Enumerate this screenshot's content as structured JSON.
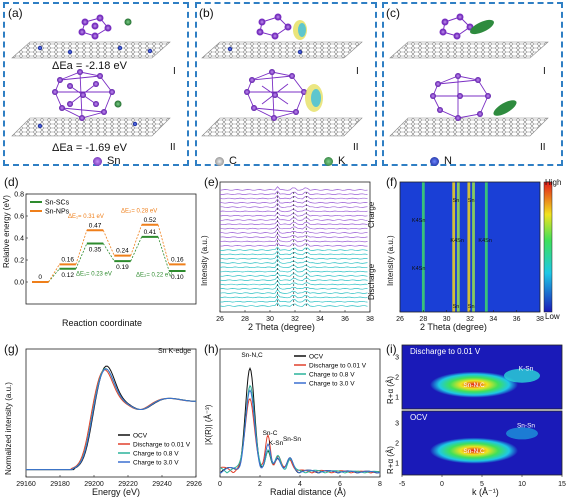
{
  "panel_labels": [
    "(a)",
    "(b)",
    "(c)",
    "(d)",
    "(e)",
    "(f)",
    "(g)",
    "(h)",
    "(i)"
  ],
  "top": {
    "a_energy_1": "ΔEa = -2.18 eV",
    "a_energy_2": "ΔEa = -1.69 eV",
    "roman_1": "I",
    "roman_2": "II",
    "legend": [
      {
        "label": "Sn",
        "color": "#7b2fc4"
      },
      {
        "label": "C",
        "color": "#a8a8a8"
      },
      {
        "label": "K",
        "color": "#2e8b3e"
      },
      {
        "label": "N",
        "color": "#1c2fb8"
      }
    ]
  },
  "chart_data": [
    {
      "id": "d",
      "type": "line",
      "xlabel": "Reaction coordinate",
      "ylabel": "Relative energy (eV)",
      "ylim": [
        -0.2,
        0.8
      ],
      "yticks": [
        "0.0",
        "0.2",
        "0.4",
        "0.6",
        "0.8"
      ],
      "series": [
        {
          "name": "Sn-SCs",
          "color": "#2e8b2e",
          "values": [
            0,
            0.12,
            0.35,
            0.19,
            0.41,
            0.1
          ]
        },
        {
          "name": "Sn-NPs",
          "color": "#ef7f1a",
          "values": [
            0,
            0.16,
            0.47,
            0.24,
            0.52,
            0.16
          ]
        }
      ],
      "level_labels": [
        "0",
        "0.16",
        "0.47",
        "0.24",
        "0.52",
        "0.16",
        "0.12",
        "0.35",
        "0.19",
        "0.41",
        "0.10"
      ],
      "barrier_labels": [
        {
          "text": "ΔE₁= 0.31 eV",
          "color": "#ef7f1a"
        },
        {
          "text": "ΔE₂= 0.28 eV",
          "color": "#ef7f1a"
        },
        {
          "text": "ΔE₁= 0.23 eV",
          "color": "#2e8b2e"
        },
        {
          "text": "ΔE₂= 0.22 eV",
          "color": "#2e8b2e"
        }
      ]
    },
    {
      "id": "e",
      "type": "line",
      "xlabel": "2 Theta (degree)",
      "ylabel": "Intensity (a.u.)",
      "xlim": [
        26,
        38
      ],
      "xticks": [
        "26",
        "28",
        "30",
        "32",
        "34",
        "36",
        "38"
      ],
      "side_labels": [
        "Charge",
        "Discharge"
      ]
    },
    {
      "id": "f",
      "type": "heatmap",
      "xlabel": "2 Theta (degree)",
      "ylabel": "Intensity (a.u.)",
      "xlim": [
        26,
        38
      ],
      "xticks": [
        "26",
        "28",
        "30",
        "32",
        "34",
        "36",
        "38"
      ],
      "colorbar_high": "High",
      "colorbar_low": "Low",
      "annotations": [
        "K4Sn",
        "Sn",
        "Sn",
        "K4Sn",
        "K4Sn",
        "K4Sn",
        "Sn",
        "Sn"
      ]
    },
    {
      "id": "g",
      "type": "line",
      "title": "Sn K-edge",
      "xlabel": "Energy (eV)",
      "ylabel": "Normalized intensity (a.u.)",
      "xlim": [
        29160,
        29260
      ],
      "xticks": [
        "29160",
        "29180",
        "29200",
        "29220",
        "29240",
        "29260"
      ],
      "series": [
        {
          "name": "OCV",
          "color": "#111111"
        },
        {
          "name": "Discharge to 0.01 V",
          "color": "#e0402c"
        },
        {
          "name": "Charge to 0.8 V",
          "color": "#2bb39a"
        },
        {
          "name": "Charge to 3.0 V",
          "color": "#3a6fd0"
        }
      ]
    },
    {
      "id": "h",
      "type": "line",
      "xlabel": "Radial distance (Å)",
      "ylabel": "|X(R)| (Å⁻³)",
      "xlim": [
        0,
        8
      ],
      "xticks": [
        "0",
        "2",
        "4",
        "6",
        "8"
      ],
      "annotations": [
        "Sn-N,C",
        "Sn-C",
        "K-Sn",
        "Sn-Sn"
      ],
      "series": [
        {
          "name": "OCV",
          "color": "#111111"
        },
        {
          "name": "Discharge to 0.01 V",
          "color": "#e0402c"
        },
        {
          "name": "Charge to 0.8 V",
          "color": "#2bb39a"
        },
        {
          "name": "Charge to 3.0 V",
          "color": "#3a6fd0"
        }
      ]
    },
    {
      "id": "i",
      "type": "heatmap",
      "xlabel": "k (Å⁻¹)",
      "ylabel": "R+α (Å)",
      "xlim": [
        -5,
        15
      ],
      "xticks": [
        "-5",
        "0",
        "5",
        "10",
        "15"
      ],
      "yticks": [
        "1",
        "2",
        "3"
      ],
      "top_title": "Discharge to 0.01 V",
      "bottom_title": "OCV",
      "top_annotations": [
        "Sn-N,C",
        "K-Sn"
      ],
      "bottom_annotations": [
        "Sn-N,C",
        "Sn-Sn"
      ]
    }
  ]
}
